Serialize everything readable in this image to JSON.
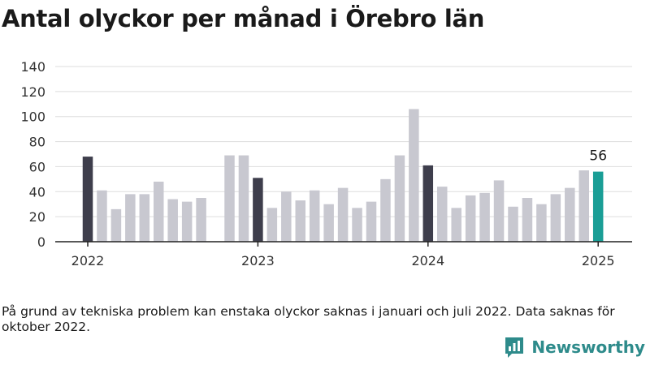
{
  "title": "Antal olyckor per månad i Örebro län",
  "note": "På grund av tekniska problem kan enstaka olyckor saknas i januari och juli 2022. Data saknas för oktober 2022.",
  "brand": {
    "name": "Newsworthy",
    "icon": "bar-chart-icon"
  },
  "colors": {
    "regular": "#c8c8d0",
    "january": "#3e3e4c",
    "latest": "#1a9e96",
    "grid": "#dddddd",
    "brand": "#2e8b8b"
  },
  "chart_data": {
    "type": "bar",
    "title": "Antal olyckor per månad i Örebro län",
    "xlabel": "",
    "ylabel": "",
    "ylim": [
      0,
      140
    ],
    "yticks": [
      0,
      20,
      40,
      60,
      80,
      100,
      120,
      140
    ],
    "xticks": [
      "2022",
      "2023",
      "2024",
      "2025"
    ],
    "grid": true,
    "highlight_label": "56",
    "categories": [
      "2022-01",
      "2022-02",
      "2022-03",
      "2022-04",
      "2022-05",
      "2022-06",
      "2022-07",
      "2022-08",
      "2022-09",
      "2022-10",
      "2022-11",
      "2022-12",
      "2023-01",
      "2023-02",
      "2023-03",
      "2023-04",
      "2023-05",
      "2023-06",
      "2023-07",
      "2023-08",
      "2023-09",
      "2023-10",
      "2023-11",
      "2023-12",
      "2024-01",
      "2024-02",
      "2024-03",
      "2024-04",
      "2024-05",
      "2024-06",
      "2024-07",
      "2024-08",
      "2024-09",
      "2024-10",
      "2024-11",
      "2024-12",
      "2025-01"
    ],
    "values": [
      68,
      41,
      26,
      38,
      38,
      48,
      34,
      32,
      35,
      null,
      69,
      69,
      51,
      27,
      40,
      33,
      41,
      30,
      43,
      27,
      32,
      50,
      69,
      106,
      61,
      44,
      27,
      37,
      39,
      49,
      28,
      35,
      30,
      38,
      43,
      57,
      56
    ]
  }
}
